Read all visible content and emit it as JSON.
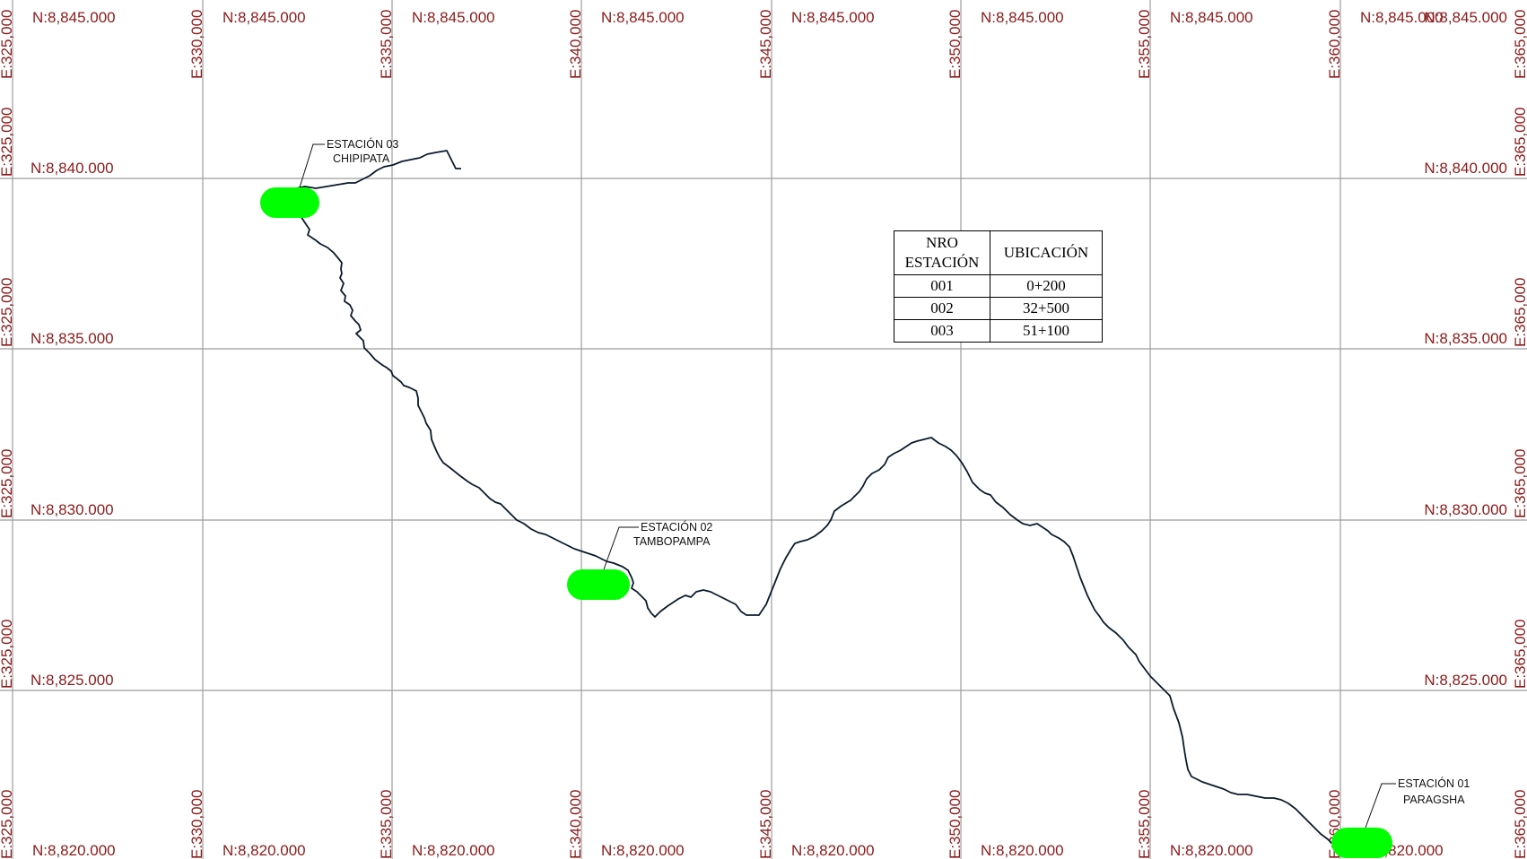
{
  "map": {
    "easting_labels": [
      "E:325,000",
      "E:330,000",
      "E:335,000",
      "E:340,000",
      "E:345,000",
      "E:350,000",
      "E:355,000",
      "E:360,000",
      "E:365,000"
    ],
    "northing_labels": [
      "N:8,845.000",
      "N:8,840.000",
      "N:8,835.000",
      "N:8,830.000",
      "N:8,825.000",
      "N:8,820.000"
    ],
    "right_northing_top": "N:8,845.000",
    "gridline_color": "#9c9c9c",
    "label_color": "#8b1a1a",
    "river_color": "#0b1a2c",
    "station_color": "#00ff00"
  },
  "stations": [
    {
      "id": "03",
      "line1": "ESTACIÓN 03",
      "line2": "CHIPIPATA"
    },
    {
      "id": "02",
      "line1": "ESTACIÓN 02",
      "line2": "TAMBOPAMPA"
    },
    {
      "id": "01",
      "line1": "ESTACIÓN 01",
      "line2": "PARAGSHA"
    }
  ],
  "table": {
    "header_col1_line1": "NRO",
    "header_col1_line2": "ESTACIÓN",
    "header_col2": "UBICACIÓN",
    "rows": [
      {
        "nro": "001",
        "ubicacion": "0+200"
      },
      {
        "nro": "002",
        "ubicacion": "32+500"
      },
      {
        "nro": "003",
        "ubicacion": "51+100"
      }
    ]
  }
}
